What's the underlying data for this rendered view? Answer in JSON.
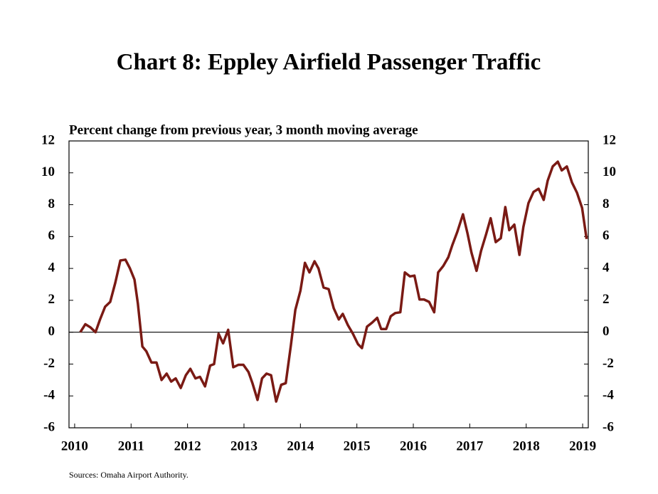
{
  "chart_data": {
    "type": "line",
    "title": "Chart 8: Eppley Airfield Passenger Traffic",
    "subtitle": "Percent change from previous year, 3 month moving average",
    "source": "Sources: Omaha Airport Authority.",
    "xlim": [
      2009.9,
      2019.1
    ],
    "xticks": [
      2010,
      2011,
      2012,
      2013,
      2014,
      2015,
      2016,
      2017,
      2018,
      2019
    ],
    "ylim": [
      -6,
      12
    ],
    "yticks": [
      -6,
      -4,
      -2,
      0,
      2,
      4,
      6,
      8,
      10,
      12
    ],
    "x": [
      2010.1,
      2010.19,
      2010.28,
      2010.37,
      2010.45,
      2010.54,
      2010.63,
      2010.72,
      2010.81,
      2010.9,
      2010.98,
      2011.06,
      2011.12,
      2011.2,
      2011.27,
      2011.36,
      2011.45,
      2011.54,
      2011.63,
      2011.71,
      2011.79,
      2011.88,
      2011.97,
      2012.05,
      2012.14,
      2012.22,
      2012.31,
      2012.4,
      2012.47,
      2012.55,
      2012.63,
      2012.72,
      2012.81,
      2012.9,
      2012.99,
      2013.08,
      2013.15,
      2013.24,
      2013.32,
      2013.4,
      2013.48,
      2013.57,
      2013.66,
      2013.74,
      2013.83,
      2013.91,
      2014.0,
      2014.08,
      2014.16,
      2014.25,
      2014.32,
      2014.41,
      2014.5,
      2014.59,
      2014.68,
      2014.75,
      2014.84,
      2014.93,
      2015.02,
      2015.09,
      2015.18,
      2015.27,
      2015.36,
      2015.43,
      2015.52,
      2015.6,
      2015.68,
      2015.77,
      2015.85,
      2015.94,
      2016.02,
      2016.11,
      2016.19,
      2016.28,
      2016.37,
      2016.44,
      2016.53,
      2016.62,
      2016.69,
      2016.78,
      2016.88,
      2016.96,
      2017.03,
      2017.12,
      2017.2,
      2017.29,
      2017.37,
      2017.46,
      2017.55,
      2017.63,
      2017.7,
      2017.79,
      2017.88,
      2017.95,
      2018.04,
      2018.13,
      2018.22,
      2018.31,
      2018.38,
      2018.47,
      2018.56,
      2018.63,
      2018.72,
      2018.81,
      2018.9,
      2018.99,
      2019.07
    ],
    "series": [
      {
        "color": "#7a1a14",
        "values": [
          0,
          0.5,
          0.3,
          0,
          0.8,
          1.6,
          1.9,
          3.1,
          4.5,
          4.55,
          4.0,
          3.3,
          1.8,
          -0.9,
          -1.2,
          -1.9,
          -1.9,
          -3.0,
          -2.6,
          -3.1,
          -2.9,
          -3.5,
          -2.7,
          -2.3,
          -2.9,
          -2.8,
          -3.4,
          -2.1,
          -2.0,
          -0.1,
          -0.7,
          0.15,
          -2.2,
          -2.05,
          -2.05,
          -2.5,
          -3.2,
          -4.25,
          -2.9,
          -2.6,
          -2.7,
          -4.35,
          -3.3,
          -3.2,
          -0.85,
          1.4,
          2.6,
          4.35,
          3.75,
          4.45,
          4.0,
          2.8,
          2.7,
          1.5,
          0.8,
          1.15,
          0.45,
          -0.1,
          -0.75,
          -1.0,
          0.35,
          0.6,
          0.9,
          0.2,
          0.2,
          1.0,
          1.2,
          1.25,
          3.75,
          3.5,
          3.55,
          2.05,
          2.05,
          1.9,
          1.25,
          3.75,
          4.15,
          4.7,
          5.45,
          6.3,
          7.4,
          6.2,
          5.0,
          3.85,
          5.1,
          6.15,
          7.15,
          5.65,
          5.9,
          7.85,
          6.4,
          6.75,
          4.85,
          6.6,
          8.1,
          8.8,
          9.0,
          8.3,
          9.5,
          10.4,
          10.7,
          10.15,
          10.4,
          9.4,
          8.75,
          7.8,
          5.85
        ]
      }
    ]
  }
}
